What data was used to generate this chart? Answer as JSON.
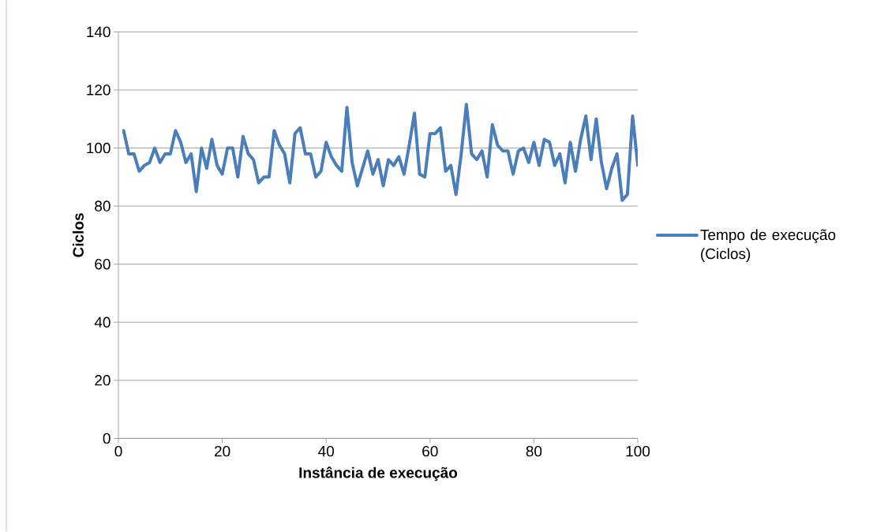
{
  "chart_data": {
    "type": "line",
    "xlabel": "Instância de execução",
    "ylabel": "Ciclos",
    "x": [
      1,
      2,
      3,
      4,
      5,
      6,
      7,
      8,
      9,
      10,
      11,
      12,
      13,
      14,
      15,
      16,
      17,
      18,
      19,
      20,
      21,
      22,
      23,
      24,
      25,
      26,
      27,
      28,
      29,
      30,
      31,
      32,
      33,
      34,
      35,
      36,
      37,
      38,
      39,
      40,
      41,
      42,
      43,
      44,
      45,
      46,
      47,
      48,
      49,
      50,
      51,
      52,
      53,
      54,
      55,
      56,
      57,
      58,
      59,
      60,
      61,
      62,
      63,
      64,
      65,
      66,
      67,
      68,
      69,
      70,
      71,
      72,
      73,
      74,
      75,
      76,
      77,
      78,
      79,
      80,
      81,
      82,
      83,
      84,
      85,
      86,
      87,
      88,
      89,
      90,
      91,
      92,
      93,
      94,
      95,
      96,
      97,
      98,
      99,
      100
    ],
    "series": [
      {
        "name": "Tempo de execução (Ciclos)",
        "color": "#4a7ebb",
        "values": [
          106,
          98,
          98,
          92,
          94,
          95,
          100,
          95,
          98,
          98,
          106,
          102,
          95,
          98,
          85,
          100,
          93,
          103,
          94,
          91,
          100,
          100,
          90,
          104,
          98,
          96,
          88,
          90,
          90,
          106,
          101,
          98,
          88,
          105,
          107,
          98,
          98,
          90,
          92,
          102,
          97,
          94,
          92,
          114,
          95,
          87,
          93,
          99,
          91,
          96,
          87,
          96,
          94,
          97,
          91,
          101,
          112,
          91,
          90,
          105,
          105,
          107,
          92,
          94,
          84,
          98,
          115,
          98,
          96,
          99,
          90,
          108,
          101,
          99,
          99,
          91,
          99,
          100,
          95,
          102,
          94,
          103,
          102,
          94,
          98,
          88,
          102,
          92,
          103,
          111,
          96,
          110,
          95,
          86,
          93,
          98,
          82,
          84,
          111,
          94
        ]
      }
    ],
    "xlim": [
      0,
      100
    ],
    "xticks": [
      0,
      20,
      40,
      60,
      80,
      100
    ],
    "ylim": [
      0,
      140
    ],
    "yticks": [
      0,
      20,
      40,
      60,
      80,
      100,
      120,
      140
    ],
    "grid": "y",
    "legend": "right",
    "marker": "none",
    "line_style": "solid"
  }
}
